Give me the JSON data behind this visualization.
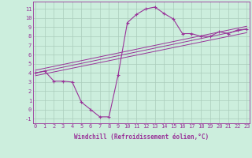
{
  "xlabel": "Windchill (Refroidissement éolien,°C)",
  "background_color": "#cceedd",
  "grid_color": "#aaccbb",
  "line_color": "#993399",
  "curve1_x": [
    0,
    1,
    2,
    3,
    4,
    5,
    6,
    7,
    8,
    9,
    10,
    11,
    12,
    13,
    14,
    15,
    16,
    17,
    18,
    19,
    20,
    21,
    22,
    23
  ],
  "curve1_y": [
    4.0,
    4.2,
    3.1,
    3.1,
    3.0,
    0.8,
    0.0,
    -0.8,
    -0.8,
    3.8,
    9.5,
    10.4,
    11.0,
    11.2,
    10.5,
    9.9,
    8.3,
    8.3,
    8.0,
    8.0,
    8.5,
    8.3,
    8.7,
    8.8
  ],
  "line1_x": [
    0,
    23
  ],
  "line1_y": [
    4.0,
    8.8
  ],
  "line2_x": [
    0,
    23
  ],
  "line2_y": [
    3.7,
    8.4
  ],
  "line3_x": [
    0,
    23
  ],
  "line3_y": [
    4.3,
    9.1
  ],
  "ylim": [
    -1.5,
    11.8
  ],
  "xlim": [
    -0.3,
    23.3
  ],
  "yticks": [
    -1,
    0,
    1,
    2,
    3,
    4,
    5,
    6,
    7,
    8,
    9,
    10,
    11
  ],
  "xticks": [
    0,
    1,
    2,
    3,
    4,
    5,
    6,
    7,
    8,
    9,
    10,
    11,
    12,
    13,
    14,
    15,
    16,
    17,
    18,
    19,
    20,
    21,
    22,
    23
  ],
  "tick_fontsize": 5,
  "xlabel_fontsize": 5.5
}
